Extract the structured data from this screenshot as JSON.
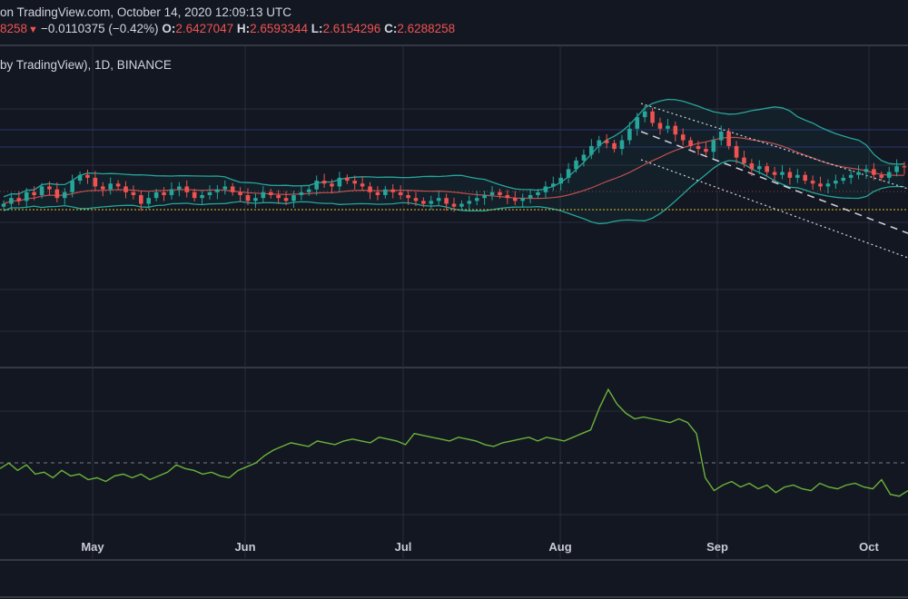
{
  "header": {
    "line1": "on TradingView.com, October 14, 2020 12:09:13 UTC",
    "price_tail": "8258",
    "change": "−0.0110375 (−0.42%)",
    "o_label": "O:",
    "o_value": "2.6427047",
    "h_label": "H:",
    "h_value": "2.6593344",
    "l_label": "L:",
    "l_value": "2.6154296",
    "c_label": "C:",
    "c_value": "2.6288258",
    "symbol_line": "by TradingView), 1D, BINANCE"
  },
  "colors": {
    "background": "#131722",
    "bullish": "#26a69a",
    "bearish": "#ef5350",
    "bollinger": "#26a69a",
    "basis": "#c05050",
    "support": "#e6c229",
    "indicator": "#6bb33a"
  },
  "chart_data": {
    "type": "candlestick",
    "x_tick_labels": [
      "May",
      "Jun",
      "Jul",
      "Aug",
      "Sep",
      "Oct"
    ],
    "candles_close_approx": [
      2.0,
      2.1,
      2.05,
      2.2,
      2.15,
      2.3,
      2.25,
      2.1,
      2.2,
      2.4,
      2.5,
      2.45,
      2.3,
      2.25,
      2.35,
      2.3,
      2.2,
      2.15,
      2.0,
      2.1,
      2.2,
      2.15,
      2.25,
      2.3,
      2.2,
      2.1,
      2.15,
      2.2,
      2.25,
      2.3,
      2.2,
      2.15,
      2.05,
      2.1,
      2.2,
      2.15,
      2.1,
      2.05,
      2.15,
      2.2,
      2.25,
      2.4,
      2.35,
      2.3,
      2.45,
      2.4,
      2.35,
      2.3,
      2.2,
      2.15,
      2.25,
      2.2,
      2.15,
      2.1,
      2.05,
      2.0,
      2.05,
      2.1,
      2.0,
      1.95,
      2.0,
      2.05,
      2.1,
      2.15,
      2.2,
      2.15,
      2.1,
      2.05,
      2.1,
      2.15,
      2.2,
      2.3,
      2.35,
      2.45,
      2.6,
      2.75,
      2.85,
      3.0,
      3.1,
      3.05,
      2.95,
      3.1,
      3.3,
      3.5,
      3.6,
      3.4,
      3.3,
      3.35,
      3.2,
      3.1,
      3.0,
      2.95,
      2.9,
      3.1,
      3.25,
      3.0,
      2.8,
      2.7,
      2.6,
      2.65,
      2.55,
      2.5,
      2.55,
      2.45,
      2.5,
      2.4,
      2.35,
      2.3,
      2.35,
      2.4,
      2.45,
      2.5,
      2.55,
      2.6,
      2.5,
      2.45,
      2.55,
      2.65,
      2.63
    ],
    "indicator_values_approx": [
      45,
      48,
      44,
      47,
      42,
      43,
      40,
      44,
      41,
      42,
      39,
      40,
      38,
      41,
      42,
      40,
      42,
      39,
      41,
      43,
      47,
      45,
      44,
      42,
      43,
      41,
      40,
      44,
      46,
      48,
      52,
      55,
      57,
      59,
      58,
      57,
      60,
      59,
      58,
      60,
      61,
      60,
      59,
      62,
      61,
      60,
      58,
      64,
      63,
      62,
      61,
      60,
      62,
      61,
      60,
      58,
      57,
      59,
      60,
      61,
      62,
      60,
      62,
      61,
      60,
      62,
      64,
      66,
      78,
      88,
      80,
      75,
      72,
      73,
      72,
      71,
      70,
      72,
      70,
      64,
      40,
      33,
      36,
      38,
      35,
      37,
      34,
      36,
      32,
      35,
      36,
      34,
      33,
      37,
      35,
      34,
      36,
      37,
      35,
      34,
      39,
      31,
      30,
      33
    ]
  }
}
